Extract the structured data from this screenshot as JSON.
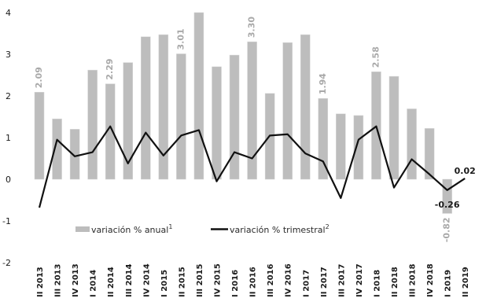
{
  "chart_data": {
    "type": "bar",
    "title": "",
    "xlabel": "",
    "ylabel": "",
    "ylim": [
      -2,
      4
    ],
    "yticks": [
      "-2",
      "-1",
      "0",
      "1",
      "2",
      "3",
      "4"
    ],
    "categories": [
      "II 2013",
      "III 2013",
      "IV 2013",
      "I 2014",
      "II 2014",
      "III 2014",
      "IV 2014",
      "I 2015",
      "II 2015",
      "III 2015",
      "IV 2015",
      "I 2016",
      "II 2016",
      "III 2016",
      "IV 2016",
      "I 2017",
      "II 2017",
      "III 2017",
      "IV 2017",
      "I 2018",
      "II 2018",
      "III 2018",
      "IV 2018",
      "I 2019",
      "II 2019"
    ],
    "series": [
      {
        "name": "variación % anual",
        "superscript": "1",
        "type": "bar",
        "color": "#bdbdbd",
        "values": [
          2.09,
          1.45,
          1.2,
          2.62,
          2.29,
          2.8,
          3.42,
          3.47,
          3.01,
          4.0,
          2.7,
          2.98,
          3.3,
          2.06,
          3.28,
          3.47,
          1.94,
          1.57,
          1.53,
          2.58,
          2.47,
          1.69,
          1.22,
          -0.82,
          null
        ]
      },
      {
        "name": "variación % trimestral",
        "superscript": "2",
        "type": "line",
        "color": "#111111",
        "values": [
          -0.68,
          0.95,
          0.55,
          0.65,
          1.27,
          0.38,
          1.12,
          0.57,
          1.05,
          1.18,
          -0.05,
          0.65,
          0.5,
          1.05,
          1.08,
          0.62,
          0.43,
          -0.45,
          0.95,
          1.27,
          -0.2,
          0.48,
          0.12,
          -0.26,
          0.02
        ]
      }
    ],
    "data_labels": [
      {
        "series": 0,
        "index": 0,
        "text": "2.09"
      },
      {
        "series": 0,
        "index": 4,
        "text": "2.29"
      },
      {
        "series": 0,
        "index": 8,
        "text": "3.01"
      },
      {
        "series": 0,
        "index": 12,
        "text": "3.30"
      },
      {
        "series": 0,
        "index": 16,
        "text": "1.94"
      },
      {
        "series": 0,
        "index": 19,
        "text": "2.58"
      },
      {
        "series": 0,
        "index": 23,
        "text": "-0.82"
      },
      {
        "series": 1,
        "index": 23,
        "text": "-0.26"
      },
      {
        "series": 1,
        "index": 24,
        "text": "0.02"
      }
    ],
    "legend_position": "lower-left, inside plot",
    "grid": false
  }
}
